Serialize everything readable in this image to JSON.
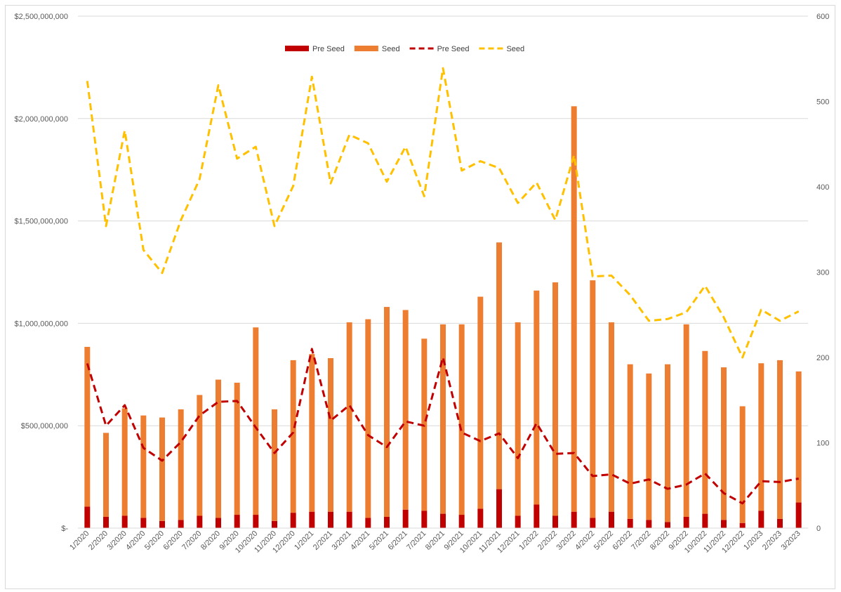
{
  "chart_data": {
    "type": "bar",
    "categories": [
      "1/2020",
      "2/2020",
      "3/2020",
      "4/2020",
      "5/2020",
      "6/2020",
      "7/2020",
      "8/2020",
      "9/2020",
      "10/2020",
      "11/2020",
      "12/2020",
      "1/2021",
      "2/2021",
      "3/2021",
      "4/2021",
      "5/2021",
      "6/2021",
      "7/2021",
      "8/2021",
      "9/2021",
      "10/2021",
      "11/2021",
      "12/2021",
      "1/2022",
      "2/2022",
      "3/2022",
      "4/2022",
      "5/2022",
      "6/2022",
      "7/2022",
      "8/2022",
      "9/2022",
      "10/2022",
      "11/2022",
      "12/2022",
      "1/2023",
      "2/2023",
      "3/2023"
    ],
    "series": [
      {
        "name": "Pre Seed",
        "kind": "bar",
        "axis": "left",
        "color": "#c00000",
        "values": [
          105000000,
          55000000,
          60000000,
          50000000,
          35000000,
          40000000,
          60000000,
          50000000,
          65000000,
          65000000,
          35000000,
          75000000,
          80000000,
          80000000,
          80000000,
          50000000,
          55000000,
          90000000,
          85000000,
          70000000,
          65000000,
          95000000,
          190000000,
          60000000,
          115000000,
          60000000,
          80000000,
          50000000,
          80000000,
          45000000,
          40000000,
          30000000,
          55000000,
          70000000,
          40000000,
          25000000,
          85000000,
          45000000,
          125000000
        ]
      },
      {
        "name": "Seed",
        "kind": "bar",
        "axis": "left",
        "color": "#ed7d31",
        "values": [
          780000000,
          410000000,
          525000000,
          500000000,
          505000000,
          540000000,
          590000000,
          675000000,
          645000000,
          915000000,
          545000000,
          745000000,
          770000000,
          750000000,
          925000000,
          970000000,
          1025000000,
          975000000,
          840000000,
          925000000,
          930000000,
          1035000000,
          1205000000,
          945000000,
          1045000000,
          1140000000,
          1980000000,
          1160000000,
          925000000,
          755000000,
          715000000,
          770000000,
          940000000,
          795000000,
          745000000,
          570000000,
          720000000,
          775000000,
          640000000
        ]
      },
      {
        "name": "Pre Seed",
        "kind": "line",
        "axis": "right",
        "color": "#c00000",
        "values": [
          193,
          120,
          144,
          94,
          79,
          101,
          132,
          148,
          149,
          118,
          88,
          112,
          210,
          126,
          144,
          109,
          95,
          125,
          120,
          200,
          112,
          102,
          111,
          82,
          123,
          87,
          88,
          61,
          63,
          52,
          57,
          46,
          51,
          64,
          41,
          29,
          55,
          54,
          58
        ]
      },
      {
        "name": "Seed",
        "kind": "line",
        "axis": "right",
        "color": "#ffc000",
        "values": [
          524,
          354,
          466,
          326,
          299,
          361,
          409,
          519,
          433,
          447,
          354,
          401,
          529,
          404,
          461,
          451,
          406,
          447,
          389,
          539,
          419,
          430,
          422,
          381,
          405,
          361,
          437,
          295,
          296,
          273,
          243,
          245,
          253,
          284,
          247,
          200,
          256,
          243,
          254
        ]
      }
    ],
    "y_left": {
      "min": 0,
      "max": 2500000000,
      "ticks": [
        "$-",
        "$500,000,000",
        "$1,000,000,000",
        "$1,500,000,000",
        "$2,000,000,000",
        "$2,500,000,000"
      ]
    },
    "y_right": {
      "min": 0,
      "max": 600,
      "ticks": [
        "0",
        "100",
        "200",
        "300",
        "400",
        "500",
        "600"
      ]
    },
    "bars": "stacked",
    "grid": true,
    "legend": "top-center"
  }
}
